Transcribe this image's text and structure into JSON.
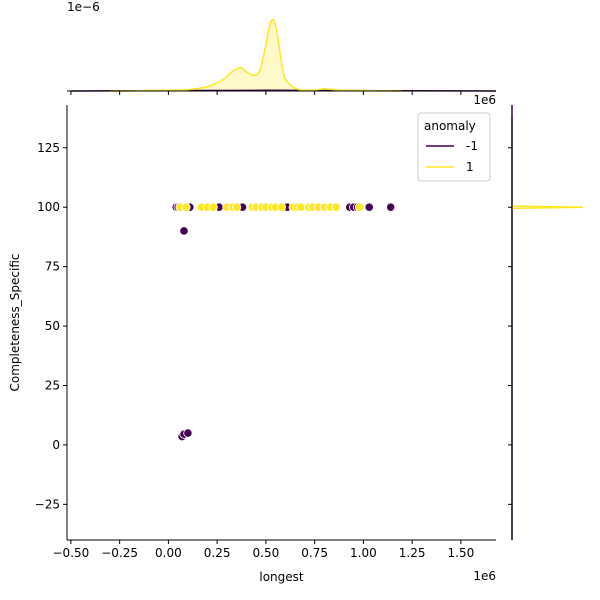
{
  "chart_data": {
    "type": "scatter",
    "xlabel": "longest",
    "ylabel": "Completeness_Specific",
    "x_offset_label": "1e6",
    "y_offset_label": "1e6",
    "top_offset_label": "1e−6",
    "xlim": [
      -0.52,
      1.68
    ],
    "ylim": [
      -40,
      143
    ],
    "x_ticks": [
      -0.5,
      -0.25,
      0.0,
      0.25,
      0.5,
      0.75,
      1.0,
      1.25,
      1.5
    ],
    "x_tick_labels": [
      "−0.50",
      "−0.25",
      "0.00",
      "0.25",
      "0.50",
      "0.75",
      "1.00",
      "1.25",
      "1.50"
    ],
    "y_ticks": [
      -25,
      0,
      25,
      50,
      75,
      100,
      125
    ],
    "y_tick_labels": [
      "−25",
      "0",
      "25",
      "50",
      "75",
      "100",
      "125"
    ],
    "legend": {
      "title": "anomaly",
      "placement": "top-right",
      "entries": [
        {
          "label": "-1",
          "color": "#440154"
        },
        {
          "label": "1",
          "color": "#fde725"
        }
      ]
    },
    "series": [
      {
        "name": "-1",
        "color": "#440154",
        "points": [
          [
            0.04,
            100
          ],
          [
            0.05,
            100
          ],
          [
            0.06,
            100
          ],
          [
            0.07,
            100
          ],
          [
            0.09,
            100
          ],
          [
            0.11,
            100
          ],
          [
            0.26,
            100
          ],
          [
            0.38,
            100
          ],
          [
            0.61,
            100
          ],
          [
            0.93,
            100
          ],
          [
            0.95,
            100
          ],
          [
            0.97,
            100
          ],
          [
            1.03,
            100
          ],
          [
            1.14,
            100
          ],
          [
            0.08,
            90
          ],
          [
            0.07,
            3.5
          ],
          [
            0.08,
            4.5
          ],
          [
            0.1,
            5
          ]
        ]
      },
      {
        "name": "1",
        "color": "#fde725",
        "points": [
          [
            0.06,
            100
          ],
          [
            0.09,
            100
          ],
          [
            0.17,
            100
          ],
          [
            0.2,
            100
          ],
          [
            0.23,
            100
          ],
          [
            0.3,
            100
          ],
          [
            0.33,
            100
          ],
          [
            0.35,
            100
          ],
          [
            0.43,
            100
          ],
          [
            0.45,
            100
          ],
          [
            0.48,
            100
          ],
          [
            0.5,
            100
          ],
          [
            0.53,
            100
          ],
          [
            0.55,
            100
          ],
          [
            0.58,
            100
          ],
          [
            0.64,
            100
          ],
          [
            0.66,
            100
          ],
          [
            0.68,
            100
          ],
          [
            0.72,
            100
          ],
          [
            0.74,
            100
          ],
          [
            0.77,
            100
          ],
          [
            0.8,
            100
          ],
          [
            0.83,
            100
          ],
          [
            0.86,
            100
          ],
          [
            0.98,
            100
          ]
        ]
      }
    ],
    "top_marginal_kde": {
      "series": [
        {
          "name": "-1",
          "color": "#440154",
          "x": [
            -0.5,
            0.0,
            0.5,
            1.0,
            1.5,
            1.68
          ],
          "density": [
            0.0,
            0.005,
            0.01,
            0.005,
            0.002,
            0.0
          ]
        },
        {
          "name": "1",
          "color": "#fde725",
          "x": [
            -0.3,
            -0.1,
            0.0,
            0.1,
            0.2,
            0.28,
            0.33,
            0.37,
            0.4,
            0.44,
            0.47,
            0.5,
            0.52,
            0.54,
            0.56,
            0.58,
            0.6,
            0.65,
            0.7,
            0.75,
            0.8,
            0.85,
            0.9,
            1.0,
            1.1,
            1.2
          ],
          "density": [
            0.0,
            0.005,
            0.01,
            0.02,
            0.06,
            0.16,
            0.28,
            0.33,
            0.27,
            0.22,
            0.3,
            0.65,
            0.93,
            1.0,
            0.78,
            0.4,
            0.17,
            0.04,
            0.01,
            0.015,
            0.03,
            0.02,
            0.01,
            0.005,
            0.002,
            0.0
          ]
        }
      ]
    },
    "right_marginal_kde": {
      "series": [
        {
          "name": "-1",
          "color": "#440154",
          "y": [
            -40,
            143
          ],
          "density": [
            0.0,
            0.0
          ]
        },
        {
          "name": "1",
          "color": "#fde725",
          "y": [
            99.5,
            100,
            100.5
          ],
          "density": [
            0.0,
            1.0,
            0.0
          ]
        }
      ]
    }
  }
}
